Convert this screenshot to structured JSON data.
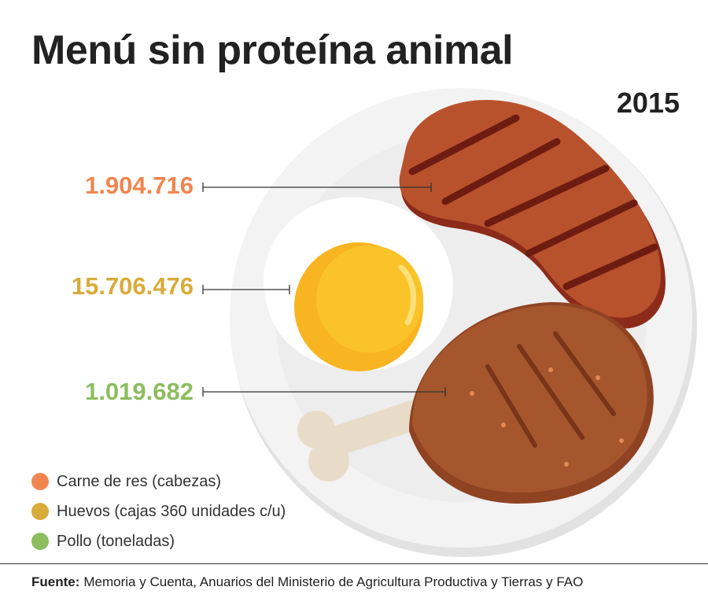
{
  "header": {
    "title": "Menú sin proteína animal",
    "year": "2015"
  },
  "values": {
    "beef": "1.904.716",
    "eggs": "15.706.476",
    "chicken": "1.019.682"
  },
  "legend": [
    {
      "label": "Carne de res (cabezas)",
      "color": "#f0854f"
    },
    {
      "label": "Huevos (cajas 360 unidades c/u)",
      "color": "#d9ab3a"
    },
    {
      "label": "Pollo (toneladas)",
      "color": "#8cbd5f"
    }
  ],
  "footer": {
    "source_label": "Fuente:",
    "source_text": "Memoria y Cuenta, Anuarios del Ministerio de Agricultura Productiva y Tierras y FAO"
  },
  "colors": {
    "beef": "#f0854f",
    "eggs": "#d9ab3a",
    "chicken": "#8cbd5f",
    "plate": "#f2f2f2",
    "steak": "#b8522d",
    "yolk": "#f9b521",
    "drumstick": "#a5562d"
  }
}
